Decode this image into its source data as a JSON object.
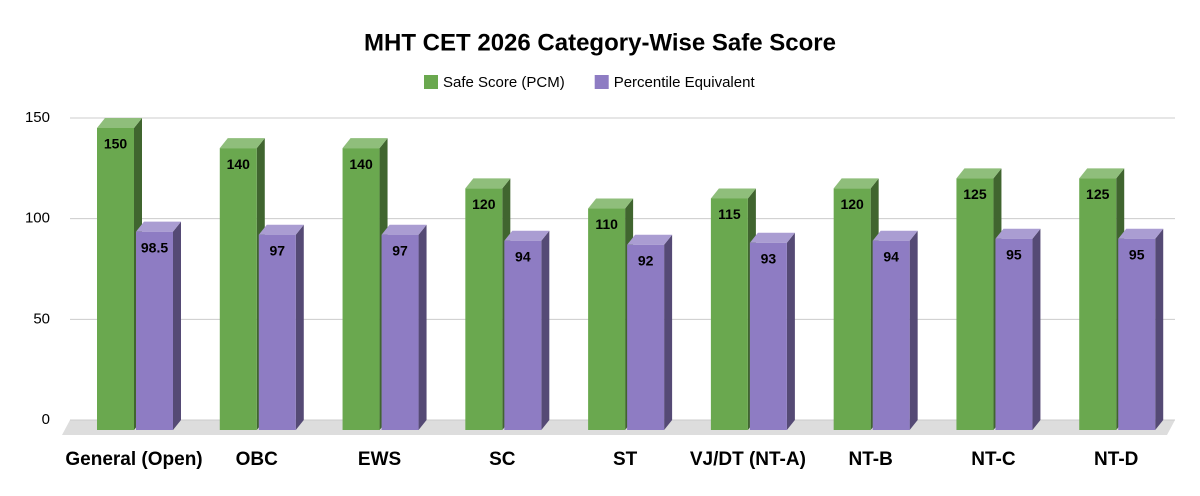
{
  "chart_data": {
    "type": "bar3d",
    "title": "MHT CET 2026 Category-Wise Safe Score",
    "categories": [
      "General (Open)",
      "OBC",
      "EWS",
      "SC",
      "ST",
      "VJ/DT (NT-A)",
      "NT-B",
      "NT-C",
      "NT-D"
    ],
    "series": [
      {
        "name": "Safe Score (PCM)",
        "color": "#6aa84f",
        "values": [
          150,
          140,
          140,
          120,
          110,
          115,
          120,
          125,
          125
        ]
      },
      {
        "name": "Percentile Equivalent",
        "color": "#8e7cc3",
        "values": [
          98.5,
          97,
          97,
          94,
          92,
          93,
          94,
          95,
          95
        ]
      }
    ],
    "ylim": [
      0,
      150
    ],
    "yticks": [
      0,
      50,
      100,
      150
    ],
    "grid": true,
    "data_labels": true
  }
}
